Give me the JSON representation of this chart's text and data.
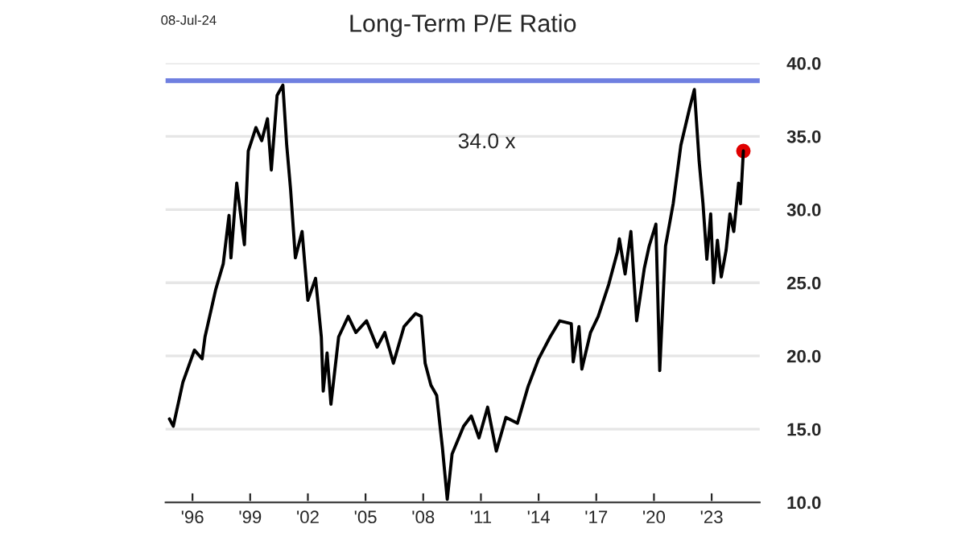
{
  "chart_data": {
    "type": "line",
    "title": "Long-Term P/E Ratio",
    "annotations": [
      "08-Jul-24",
      "34.0 x"
    ],
    "xlim": [
      1994.6,
      2025.5
    ],
    "ylim": [
      10,
      40
    ],
    "xticks": [
      {
        "value": 1996,
        "label": "'96"
      },
      {
        "value": 1999,
        "label": "'99"
      },
      {
        "value": 2002,
        "label": "'02"
      },
      {
        "value": 2005,
        "label": "'05"
      },
      {
        "value": 2008,
        "label": "'08"
      },
      {
        "value": 2011,
        "label": "'11"
      },
      {
        "value": 2014,
        "label": "'14"
      },
      {
        "value": 2017,
        "label": "'17"
      },
      {
        "value": 2020,
        "label": "'20"
      },
      {
        "value": 2023,
        "label": "'23"
      }
    ],
    "yticks": [
      {
        "value": 10,
        "label": "10.0"
      },
      {
        "value": 15,
        "label": "15.0"
      },
      {
        "value": 20,
        "label": "20.0"
      },
      {
        "value": 25,
        "label": "25.0"
      },
      {
        "value": 30,
        "label": "30.0"
      },
      {
        "value": 35,
        "label": "35.0"
      },
      {
        "value": 40,
        "label": "40.0"
      }
    ],
    "grid": "y",
    "ref_lines": [
      {
        "axis": "y",
        "value": 38.8,
        "label": null,
        "color": "#6f7fe0"
      }
    ],
    "series": [
      {
        "color": "#000000",
        "x": [
          1994.8,
          1995.0,
          1995.5,
          1996.1,
          1996.5,
          1996.65,
          1997.2,
          1997.6,
          1997.9,
          1998.0,
          1998.3,
          1998.7,
          1998.9,
          1999.3,
          1999.6,
          1999.9,
          2000.1,
          2000.4,
          2000.7,
          2000.9,
          2001.1,
          2001.35,
          2001.7,
          2002.0,
          2002.4,
          2002.7,
          2002.8,
          2003.0,
          2003.2,
          2003.6,
          2004.1,
          2004.5,
          2005.05,
          2005.6,
          2006.0,
          2006.45,
          2007.0,
          2007.6,
          2007.9,
          2008.1,
          2008.4,
          2008.7,
          2009.0,
          2009.25,
          2009.5,
          2010.1,
          2010.5,
          2010.9,
          2011.35,
          2011.8,
          2012.3,
          2012.9,
          2013.45,
          2014.0,
          2014.6,
          2015.1,
          2015.7,
          2015.8,
          2016.1,
          2016.25,
          2016.7,
          2017.1,
          2017.65,
          2018.1,
          2018.2,
          2018.5,
          2018.8,
          2019.1,
          2019.5,
          2019.75,
          2020.1,
          2020.3,
          2020.6,
          2021.0,
          2021.4,
          2021.85,
          2022.1,
          2022.35,
          2022.55,
          2022.75,
          2022.95,
          2023.1,
          2023.3,
          2023.5,
          2023.75,
          2023.95,
          2024.15,
          2024.4,
          2024.5,
          2024.65
        ],
        "values": [
          15.7,
          15.2,
          18.2,
          20.4,
          19.8,
          21.3,
          24.5,
          26.3,
          29.6,
          26.7,
          31.8,
          27.6,
          34.0,
          35.6,
          34.7,
          36.2,
          32.7,
          37.8,
          38.5,
          34.4,
          31.4,
          26.7,
          28.5,
          23.8,
          25.3,
          21.3,
          17.6,
          20.2,
          16.7,
          21.3,
          22.7,
          21.6,
          22.4,
          20.6,
          21.6,
          19.5,
          22.0,
          22.9,
          22.7,
          19.5,
          18.0,
          17.3,
          13.7,
          10.2,
          13.3,
          15.2,
          15.9,
          14.4,
          16.5,
          13.5,
          15.8,
          15.4,
          17.9,
          19.8,
          21.3,
          22.4,
          22.2,
          19.6,
          22.0,
          19.1,
          21.6,
          22.7,
          24.9,
          27.1,
          28.0,
          25.6,
          28.5,
          22.4,
          26.0,
          27.5,
          29.0,
          19.0,
          27.5,
          30.4,
          34.4,
          36.9,
          38.2,
          33.3,
          30.4,
          26.6,
          29.7,
          25.0,
          27.9,
          25.4,
          27.2,
          29.7,
          28.5,
          31.8,
          30.4,
          34.0
        ]
      },
      {
        "type": "scatter",
        "color": "#e00000",
        "marker": "circle",
        "x": [
          2024.65
        ],
        "values": [
          34.0
        ]
      }
    ]
  }
}
